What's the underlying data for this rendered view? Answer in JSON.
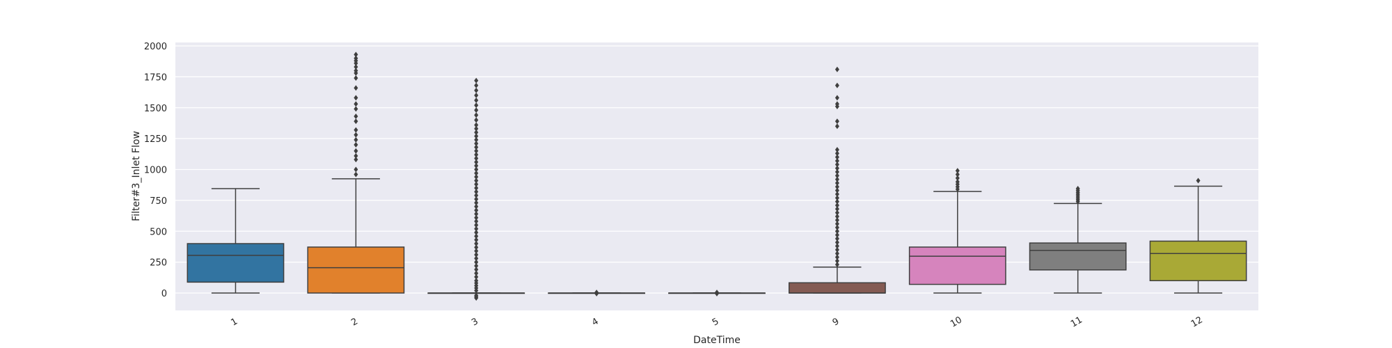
{
  "chart_data": {
    "type": "box",
    "xlabel": "DateTime",
    "ylabel": "Filter#3_Inlet Flow",
    "ylim": [
      -140,
      2040
    ],
    "yticks": [
      0,
      250,
      500,
      750,
      1000,
      1250,
      1500,
      1750,
      2000
    ],
    "ytick_labels": [
      "0",
      "250",
      "500",
      "750",
      "1000",
      "1250",
      "1500",
      "1750",
      "2000"
    ],
    "grid": true,
    "legend": "none",
    "categories": [
      "1",
      "2",
      "3",
      "4",
      "5",
      "9",
      "10",
      "11",
      "12"
    ],
    "boxes": [
      {
        "category": "1",
        "color": "#3274a1",
        "min": 0,
        "q1": 88,
        "median": 305,
        "q3": 400,
        "max": 845,
        "outliers": []
      },
      {
        "category": "2",
        "color": "#e1812c",
        "min": 0,
        "q1": 0,
        "median": 205,
        "q3": 372,
        "max": 925,
        "outliers": [
          960,
          1000,
          1080,
          1110,
          1150,
          1200,
          1240,
          1280,
          1320,
          1390,
          1430,
          1490,
          1530,
          1580,
          1660,
          1740,
          1780,
          1800,
          1830,
          1860,
          1880,
          1900,
          1930
        ]
      },
      {
        "category": "3",
        "color": "#3a923a",
        "min": 0,
        "q1": 0,
        "median": 0,
        "q3": 0,
        "max": 0,
        "outliers": [
          -40,
          -30,
          -20,
          20,
          40,
          60,
          80,
          100,
          130,
          160,
          190,
          220,
          250,
          280,
          310,
          340,
          370,
          400,
          430,
          460,
          490,
          520,
          550,
          580,
          610,
          640,
          670,
          700,
          730,
          760,
          790,
          820,
          850,
          880,
          910,
          940,
          970,
          1000,
          1030,
          1060,
          1090,
          1120,
          1150,
          1180,
          1210,
          1240,
          1270,
          1300,
          1330,
          1360,
          1400,
          1440,
          1480,
          1520,
          1560,
          1600,
          1640,
          1680,
          1720
        ]
      },
      {
        "category": "4",
        "color": "#c03d3e",
        "min": 0,
        "q1": 0,
        "median": 0,
        "q3": 0,
        "max": 0,
        "outliers": [
          -5,
          5
        ]
      },
      {
        "category": "5",
        "color": "#9372b2",
        "min": 0,
        "q1": 0,
        "median": 0,
        "q3": 0,
        "max": 0,
        "outliers": [
          -5,
          5
        ]
      },
      {
        "category": "9",
        "color": "#845b53",
        "min": 0,
        "q1": 0,
        "median": 0,
        "q3": 83,
        "max": 210,
        "outliers": [
          230,
          260,
          290,
          320,
          350,
          380,
          410,
          440,
          470,
          500,
          530,
          560,
          590,
          620,
          650,
          680,
          710,
          740,
          770,
          800,
          830,
          860,
          890,
          920,
          950,
          980,
          1010,
          1040,
          1070,
          1100,
          1130,
          1160,
          1350,
          1390,
          1510,
          1530,
          1580,
          1680,
          1810
        ]
      },
      {
        "category": "10",
        "color": "#d684bd",
        "min": 0,
        "q1": 70,
        "median": 298,
        "q3": 372,
        "max": 822,
        "outliers": [
          840,
          860,
          880,
          900,
          930,
          960,
          990
        ]
      },
      {
        "category": "11",
        "color": "#7f7f7f",
        "min": 0,
        "q1": 187,
        "median": 345,
        "q3": 405,
        "max": 725,
        "outliers": [
          740,
          755,
          770,
          785,
          800,
          815,
          830,
          845
        ]
      },
      {
        "category": "12",
        "color": "#a9a936",
        "min": 0,
        "q1": 100,
        "median": 320,
        "q3": 420,
        "max": 865,
        "outliers": [
          910
        ]
      }
    ]
  }
}
